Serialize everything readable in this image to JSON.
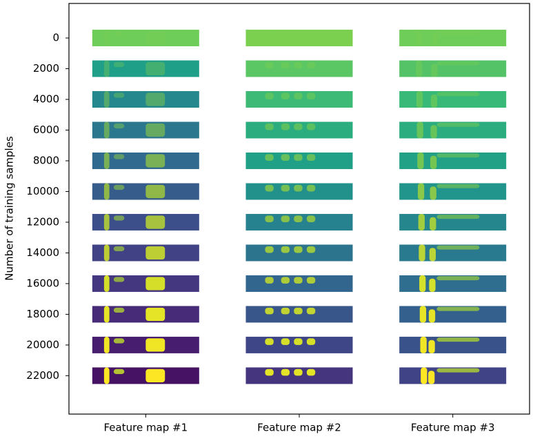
{
  "chart_data": {
    "type": "feature-grid",
    "ylabel": "Number of training samples",
    "categories": [
      "Feature map #1",
      "Feature map #2",
      "Feature map #3"
    ],
    "ylim": [
      24500,
      -2250
    ],
    "yticks": [
      0,
      2000,
      4000,
      6000,
      8000,
      10000,
      12000,
      14000,
      16000,
      18000,
      20000,
      22000
    ]
  }
}
